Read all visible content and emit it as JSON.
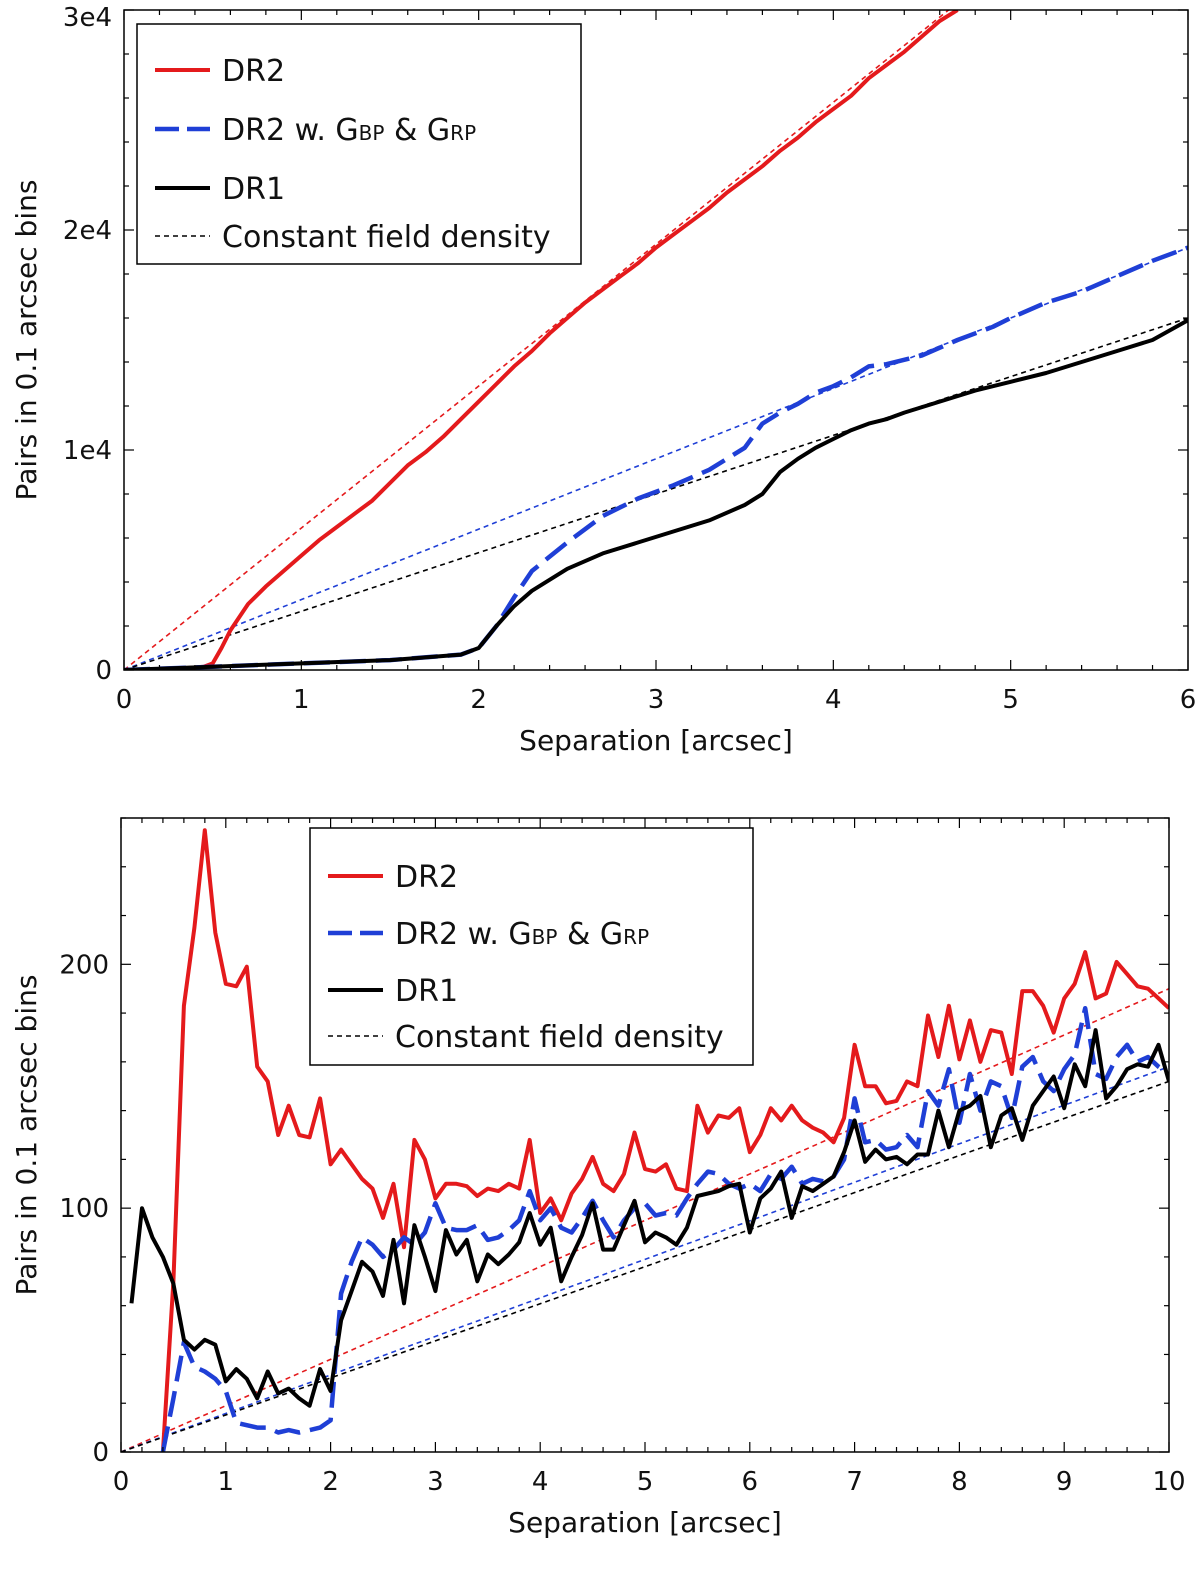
{
  "chart_data": [
    {
      "type": "line",
      "xlabel": "Separation [arcsec]",
      "ylabel": "Pairs in 0.1 arcsec bins",
      "xlim": [
        0,
        6
      ],
      "ylim": [
        0,
        30000
      ],
      "xticks": [
        0,
        1,
        2,
        3,
        4,
        5,
        6
      ],
      "xtick_labels": [
        "0",
        "1",
        "2",
        "3",
        "4",
        "5",
        "6"
      ],
      "yticks": [
        0,
        10000,
        20000,
        30000
      ],
      "ytick_labels": [
        "0",
        "1e4",
        "2e4",
        "3e4"
      ],
      "grid": false,
      "legend_position": "top-left",
      "legend": [
        {
          "key": "dr2",
          "text": "DR2"
        },
        {
          "key": "dr2bp",
          "text": "DR2 w. G",
          "sub1": "BP",
          "mid": " & G",
          "sub2": "RP"
        },
        {
          "key": "dr1",
          "text": "DR1"
        },
        {
          "key": "const",
          "text": "Constant field density"
        }
      ],
      "series": [
        {
          "name": "DR2",
          "color": "#e41a1c",
          "style": "solid",
          "x": [
            0,
            0.3,
            0.45,
            0.5,
            0.55,
            0.6,
            0.7,
            0.8,
            0.9,
            1.0,
            1.1,
            1.2,
            1.3,
            1.4,
            1.5,
            1.6,
            1.7,
            1.8,
            1.9,
            2.0,
            2.1,
            2.2,
            2.3,
            2.4,
            2.5,
            2.6,
            2.7,
            2.8,
            2.9,
            3.0,
            3.1,
            3.2,
            3.3,
            3.4,
            3.5,
            3.6,
            3.7,
            3.8,
            3.9,
            4.0,
            4.1,
            4.2,
            4.3,
            4.4,
            4.5,
            4.6,
            4.7
          ],
          "y": [
            0,
            50,
            150,
            300,
            1000,
            1800,
            3000,
            3800,
            4500,
            5200,
            5900,
            6500,
            7100,
            7700,
            8500,
            9300,
            9900,
            10600,
            11400,
            12200,
            13000,
            13800,
            14500,
            15300,
            16000,
            16700,
            17300,
            17900,
            18500,
            19200,
            19800,
            20400,
            21000,
            21700,
            22300,
            22900,
            23600,
            24200,
            24900,
            25500,
            26100,
            26900,
            27500,
            28100,
            28800,
            29500,
            30000
          ]
        },
        {
          "name": "DR2 w. G_BP & G_RP",
          "color": "#1f3fd6",
          "style": "dashed",
          "x": [
            0,
            0.5,
            1.0,
            1.5,
            1.9,
            2.0,
            2.1,
            2.2,
            2.3,
            2.5,
            2.7,
            2.9,
            3.1,
            3.3,
            3.5,
            3.6,
            3.7,
            3.8,
            3.9,
            4.0,
            4.1,
            4.2,
            4.3,
            4.5,
            4.7,
            4.9,
            5.0,
            5.2,
            5.4,
            5.6,
            5.8,
            6.0
          ],
          "y": [
            0,
            150,
            300,
            450,
            700,
            1000,
            2000,
            3300,
            4500,
            5800,
            7000,
            7800,
            8400,
            9100,
            10100,
            11200,
            11700,
            12100,
            12600,
            12900,
            13300,
            13800,
            13900,
            14300,
            15000,
            15600,
            16000,
            16700,
            17200,
            17900,
            18600,
            19200
          ]
        },
        {
          "name": "DR1",
          "color": "#000000",
          "style": "solid",
          "x": [
            0,
            0.5,
            1.0,
            1.5,
            1.9,
            2.0,
            2.1,
            2.2,
            2.3,
            2.5,
            2.7,
            2.9,
            3.1,
            3.3,
            3.5,
            3.6,
            3.7,
            3.8,
            3.9,
            4.0,
            4.1,
            4.2,
            4.3,
            4.4,
            4.6,
            4.8,
            5.0,
            5.2,
            5.4,
            5.6,
            5.8,
            6.0
          ],
          "y": [
            0,
            150,
            300,
            450,
            700,
            1000,
            2000,
            2900,
            3600,
            4600,
            5300,
            5800,
            6300,
            6800,
            7500,
            8000,
            9000,
            9600,
            10100,
            10500,
            10900,
            11200,
            11400,
            11700,
            12200,
            12700,
            13100,
            13500,
            14000,
            14500,
            15000,
            15900
          ]
        },
        {
          "name": "DR2 constant field density",
          "color": "#e41a1c",
          "style": "short-dash",
          "x": [
            0,
            4.65
          ],
          "y": [
            0,
            30000
          ]
        },
        {
          "name": "DR2 w. G_BP & G_RP constant field density",
          "color": "#1f3fd6",
          "style": "short-dash",
          "x": [
            0,
            6.0
          ],
          "y": [
            0,
            19200
          ]
        },
        {
          "name": "DR1 constant field density",
          "color": "#000000",
          "style": "short-dash",
          "x": [
            0,
            6.0
          ],
          "y": [
            0,
            16000
          ]
        }
      ]
    },
    {
      "type": "line",
      "xlabel": "Separation [arcsec]",
      "ylabel": "Pairs in 0.1 arcsec bins",
      "xlim": [
        0,
        10
      ],
      "ylim": [
        0,
        260
      ],
      "xticks": [
        0,
        1,
        2,
        3,
        4,
        5,
        6,
        7,
        8,
        9,
        10
      ],
      "xtick_labels": [
        "0",
        "1",
        "2",
        "3",
        "4",
        "5",
        "6",
        "7",
        "8",
        "9",
        "10"
      ],
      "yticks": [
        0,
        100,
        200
      ],
      "ytick_labels": [
        "0",
        "100",
        "200"
      ],
      "grid": false,
      "legend_position": "top-center",
      "legend": [
        {
          "key": "dr2",
          "text": "DR2"
        },
        {
          "key": "dr2bp",
          "text": "DR2 w. G",
          "sub1": "BP",
          "mid": " & G",
          "sub2": "RP"
        },
        {
          "key": "dr1",
          "text": "DR1"
        },
        {
          "key": "const",
          "text": "Constant field density"
        }
      ],
      "series": [
        {
          "name": "DR2",
          "color": "#e41a1c",
          "style": "solid",
          "x": [
            0.4,
            0.5,
            0.6,
            0.7,
            0.8,
            0.9,
            1.0,
            1.1,
            1.2,
            1.3,
            1.4,
            1.5,
            1.6,
            1.7,
            1.8,
            1.9,
            2.0,
            2.1,
            2.2,
            2.3,
            2.4,
            2.5,
            2.6,
            2.7,
            2.8,
            2.9,
            3.0,
            3.1,
            3.2,
            3.3,
            3.4,
            3.5,
            3.6,
            3.7,
            3.8,
            3.9,
            4.0,
            4.1,
            4.2,
            4.3,
            4.4,
            4.5,
            4.6,
            4.7,
            4.8,
            4.9,
            5.0,
            5.1,
            5.2,
            5.3,
            5.4,
            5.5,
            5.6,
            5.7,
            5.8,
            5.9,
            6.0,
            6.1,
            6.2,
            6.3,
            6.4,
            6.5,
            6.6,
            6.7,
            6.8,
            6.9,
            7.0,
            7.1,
            7.2,
            7.3,
            7.4,
            7.5,
            7.6,
            7.7,
            7.8,
            7.9,
            8.0,
            8.1,
            8.2,
            8.3,
            8.4,
            8.5,
            8.6,
            8.7,
            8.8,
            8.9,
            9.0,
            9.1,
            9.2,
            9.3,
            9.4,
            9.5,
            9.6,
            9.7,
            9.8,
            9.9,
            10.0
          ],
          "y": [
            0,
            70,
            183,
            215,
            255,
            213,
            192,
            191,
            199,
            158,
            152,
            130,
            142,
            130,
            129,
            145,
            118,
            124,
            118,
            112,
            108,
            96,
            110,
            84,
            128,
            120,
            104,
            110,
            110,
            109,
            105,
            108,
            107,
            110,
            108,
            128,
            98,
            104,
            95,
            106,
            112,
            121,
            110,
            107,
            114,
            131,
            116,
            115,
            118,
            108,
            107,
            142,
            131,
            138,
            137,
            141,
            123,
            130,
            141,
            136,
            142,
            136,
            133,
            131,
            127,
            137,
            167,
            150,
            150,
            143,
            144,
            152,
            150,
            179,
            162,
            183,
            161,
            177,
            160,
            173,
            172,
            155,
            189,
            189,
            183,
            172,
            186,
            192,
            205,
            186,
            188,
            201,
            196,
            191,
            190,
            186,
            182
          ]
        },
        {
          "name": "DR2 w. G_BP & G_RP",
          "color": "#1f3fd6",
          "style": "dashed",
          "x": [
            0.4,
            0.5,
            0.6,
            0.7,
            0.8,
            0.9,
            1.0,
            1.1,
            1.2,
            1.3,
            1.4,
            1.5,
            1.6,
            1.7,
            1.8,
            1.9,
            2.0,
            2.1,
            2.2,
            2.3,
            2.4,
            2.5,
            2.6,
            2.7,
            2.8,
            2.9,
            3.0,
            3.1,
            3.2,
            3.3,
            3.4,
            3.5,
            3.6,
            3.7,
            3.8,
            3.9,
            4.0,
            4.1,
            4.2,
            4.3,
            4.4,
            4.5,
            4.6,
            4.7,
            4.8,
            4.9,
            5.0,
            5.1,
            5.2,
            5.3,
            5.4,
            5.5,
            5.6,
            5.7,
            5.8,
            5.9,
            6.0,
            6.1,
            6.2,
            6.3,
            6.4,
            6.5,
            6.6,
            6.7,
            6.8,
            6.9,
            7.0,
            7.1,
            7.2,
            7.3,
            7.4,
            7.5,
            7.6,
            7.7,
            7.8,
            7.9,
            8.0,
            8.1,
            8.2,
            8.3,
            8.4,
            8.5,
            8.6,
            8.7,
            8.8,
            8.9,
            9.0,
            9.1,
            9.2,
            9.3,
            9.4,
            9.5,
            9.6,
            9.7,
            9.8,
            9.9,
            10.0
          ],
          "y": [
            0,
            22,
            45,
            35,
            33,
            30,
            25,
            12,
            11,
            10,
            10,
            8,
            9,
            8,
            9,
            10,
            13,
            65,
            78,
            88,
            85,
            80,
            83,
            88,
            85,
            90,
            102,
            92,
            91,
            91,
            93,
            87,
            88,
            91,
            95,
            107,
            95,
            100,
            92,
            90,
            96,
            103,
            95,
            88,
            95,
            100,
            102,
            97,
            98,
            97,
            104,
            110,
            115,
            114,
            110,
            108,
            110,
            107,
            114,
            112,
            117,
            110,
            112,
            111,
            113,
            120,
            145,
            127,
            128,
            124,
            125,
            130,
            125,
            148,
            142,
            157,
            135,
            155,
            140,
            152,
            150,
            137,
            158,
            162,
            152,
            148,
            157,
            163,
            182,
            155,
            153,
            162,
            167,
            160,
            162,
            158,
            155
          ]
        },
        {
          "name": "DR1",
          "color": "#000000",
          "style": "solid",
          "x": [
            0.1,
            0.2,
            0.3,
            0.4,
            0.5,
            0.6,
            0.7,
            0.8,
            0.9,
            1.0,
            1.1,
            1.2,
            1.3,
            1.4,
            1.5,
            1.6,
            1.7,
            1.8,
            1.9,
            2.0,
            2.1,
            2.2,
            2.3,
            2.4,
            2.5,
            2.6,
            2.7,
            2.8,
            2.9,
            3.0,
            3.1,
            3.2,
            3.3,
            3.4,
            3.5,
            3.6,
            3.7,
            3.8,
            3.9,
            4.0,
            4.1,
            4.2,
            4.3,
            4.4,
            4.5,
            4.6,
            4.7,
            4.8,
            4.9,
            5.0,
            5.1,
            5.2,
            5.3,
            5.4,
            5.5,
            5.6,
            5.7,
            5.8,
            5.9,
            6.0,
            6.1,
            6.2,
            6.3,
            6.4,
            6.5,
            6.6,
            6.7,
            6.8,
            6.9,
            7.0,
            7.1,
            7.2,
            7.3,
            7.4,
            7.5,
            7.6,
            7.7,
            7.8,
            7.9,
            8.0,
            8.1,
            8.2,
            8.3,
            8.4,
            8.5,
            8.6,
            8.7,
            8.8,
            8.9,
            9.0,
            9.1,
            9.2,
            9.3,
            9.4,
            9.5,
            9.6,
            9.7,
            9.8,
            9.9,
            10.0
          ],
          "y": [
            61,
            100,
            88,
            80,
            69,
            46,
            42,
            46,
            44,
            29,
            34,
            30,
            22,
            33,
            24,
            26,
            22,
            19,
            34,
            25,
            54,
            66,
            78,
            74,
            64,
            87,
            61,
            93,
            80,
            66,
            91,
            81,
            87,
            70,
            81,
            77,
            81,
            86,
            98,
            85,
            92,
            70,
            80,
            89,
            102,
            83,
            83,
            93,
            103,
            86,
            90,
            88,
            85,
            92,
            105,
            106,
            107,
            109,
            110,
            90,
            104,
            108,
            115,
            96,
            109,
            107,
            110,
            113,
            123,
            136,
            119,
            124,
            120,
            121,
            118,
            122,
            122,
            140,
            125,
            140,
            142,
            146,
            125,
            138,
            141,
            128,
            142,
            148,
            154,
            141,
            159,
            150,
            173,
            145,
            150,
            157,
            159,
            158,
            167,
            152
          ]
        },
        {
          "name": "DR2 constant field density",
          "color": "#e41a1c",
          "style": "short-dash",
          "x": [
            0,
            10
          ],
          "y": [
            0,
            190
          ]
        },
        {
          "name": "DR2 w. G_BP & G_RP constant field density",
          "color": "#1f3fd6",
          "style": "short-dash",
          "x": [
            0,
            10
          ],
          "y": [
            0,
            158
          ]
        },
        {
          "name": "DR1 constant field density",
          "color": "#000000",
          "style": "short-dash",
          "x": [
            0,
            10
          ],
          "y": [
            0,
            152
          ]
        }
      ]
    }
  ]
}
